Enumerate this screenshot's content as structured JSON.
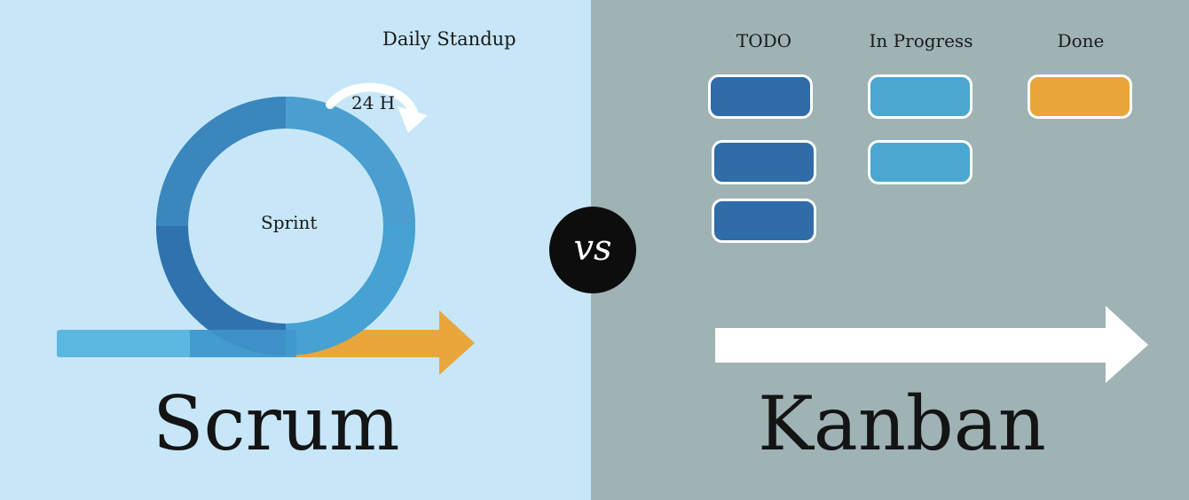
{
  "scrum": {
    "title": "Scrum",
    "standup_label": "Daily Standup",
    "hours_label": "24 H",
    "sprint_label": "Sprint"
  },
  "comparison": {
    "vs_label": "vs"
  },
  "kanban": {
    "title": "Kanban",
    "columns": [
      {
        "label": "TODO",
        "card_count": 3
      },
      {
        "label": "In Progress",
        "card_count": 2
      },
      {
        "label": "Done",
        "card_count": 1
      }
    ]
  },
  "colors": {
    "scrum_background": "#c7e7f8",
    "kanban_background": "#9fb3b5",
    "todo_card": "#2f6ca8",
    "in_progress_card": "#4aa8d0",
    "done_card": "#e9a63c",
    "sprint_ring": "#3d8fc6",
    "backlog_bar": "#5bb8e0",
    "output_arrow": "#e9a63c",
    "vs_badge": "#0d0d0d"
  }
}
